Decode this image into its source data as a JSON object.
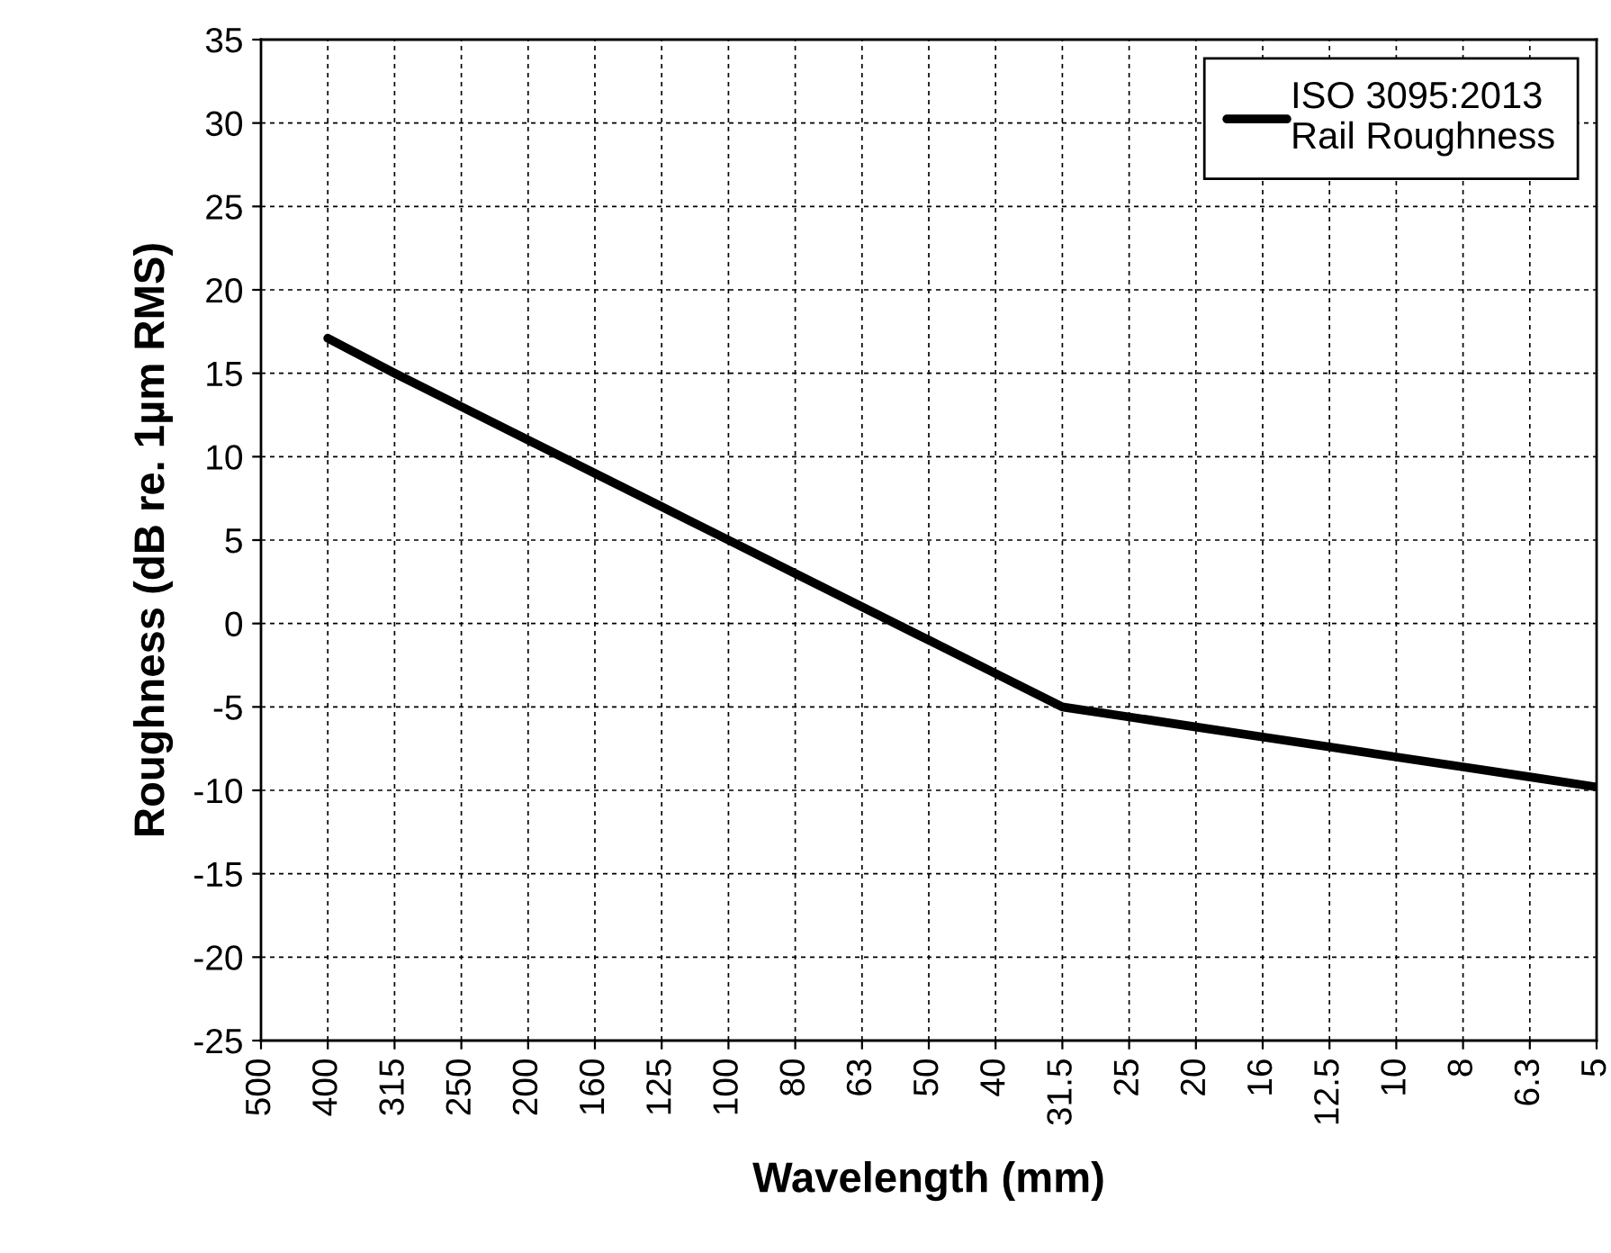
{
  "chart_data": {
    "type": "line",
    "xlabel": "Wavelength (mm)",
    "ylabel": "Roughness (dB re. 1µm RMS)",
    "categories": [
      "500",
      "400",
      "315",
      "250",
      "200",
      "160",
      "125",
      "100",
      "80",
      "63",
      "50",
      "40",
      "31.5",
      "25",
      "20",
      "16",
      "12.5",
      "10",
      "8",
      "6.3",
      "5"
    ],
    "series": [
      {
        "name": "ISO 3095:2013\nRail Roughness",
        "color": "#000000",
        "values": [
          null,
          17.1,
          15,
          13,
          11,
          9,
          7,
          5,
          3,
          1,
          -1,
          -3,
          -5,
          -5.6,
          -6.2,
          -6.8,
          -7.4,
          -8,
          -8.6,
          -9.2,
          -9.8
        ]
      }
    ],
    "ylim": [
      -25,
      35
    ],
    "yticks": [
      -25,
      -20,
      -15,
      -10,
      -5,
      0,
      5,
      10,
      15,
      20,
      25,
      30,
      35
    ],
    "grid": true,
    "legend": "top right",
    "marker": "none",
    "line_style": "solid"
  }
}
